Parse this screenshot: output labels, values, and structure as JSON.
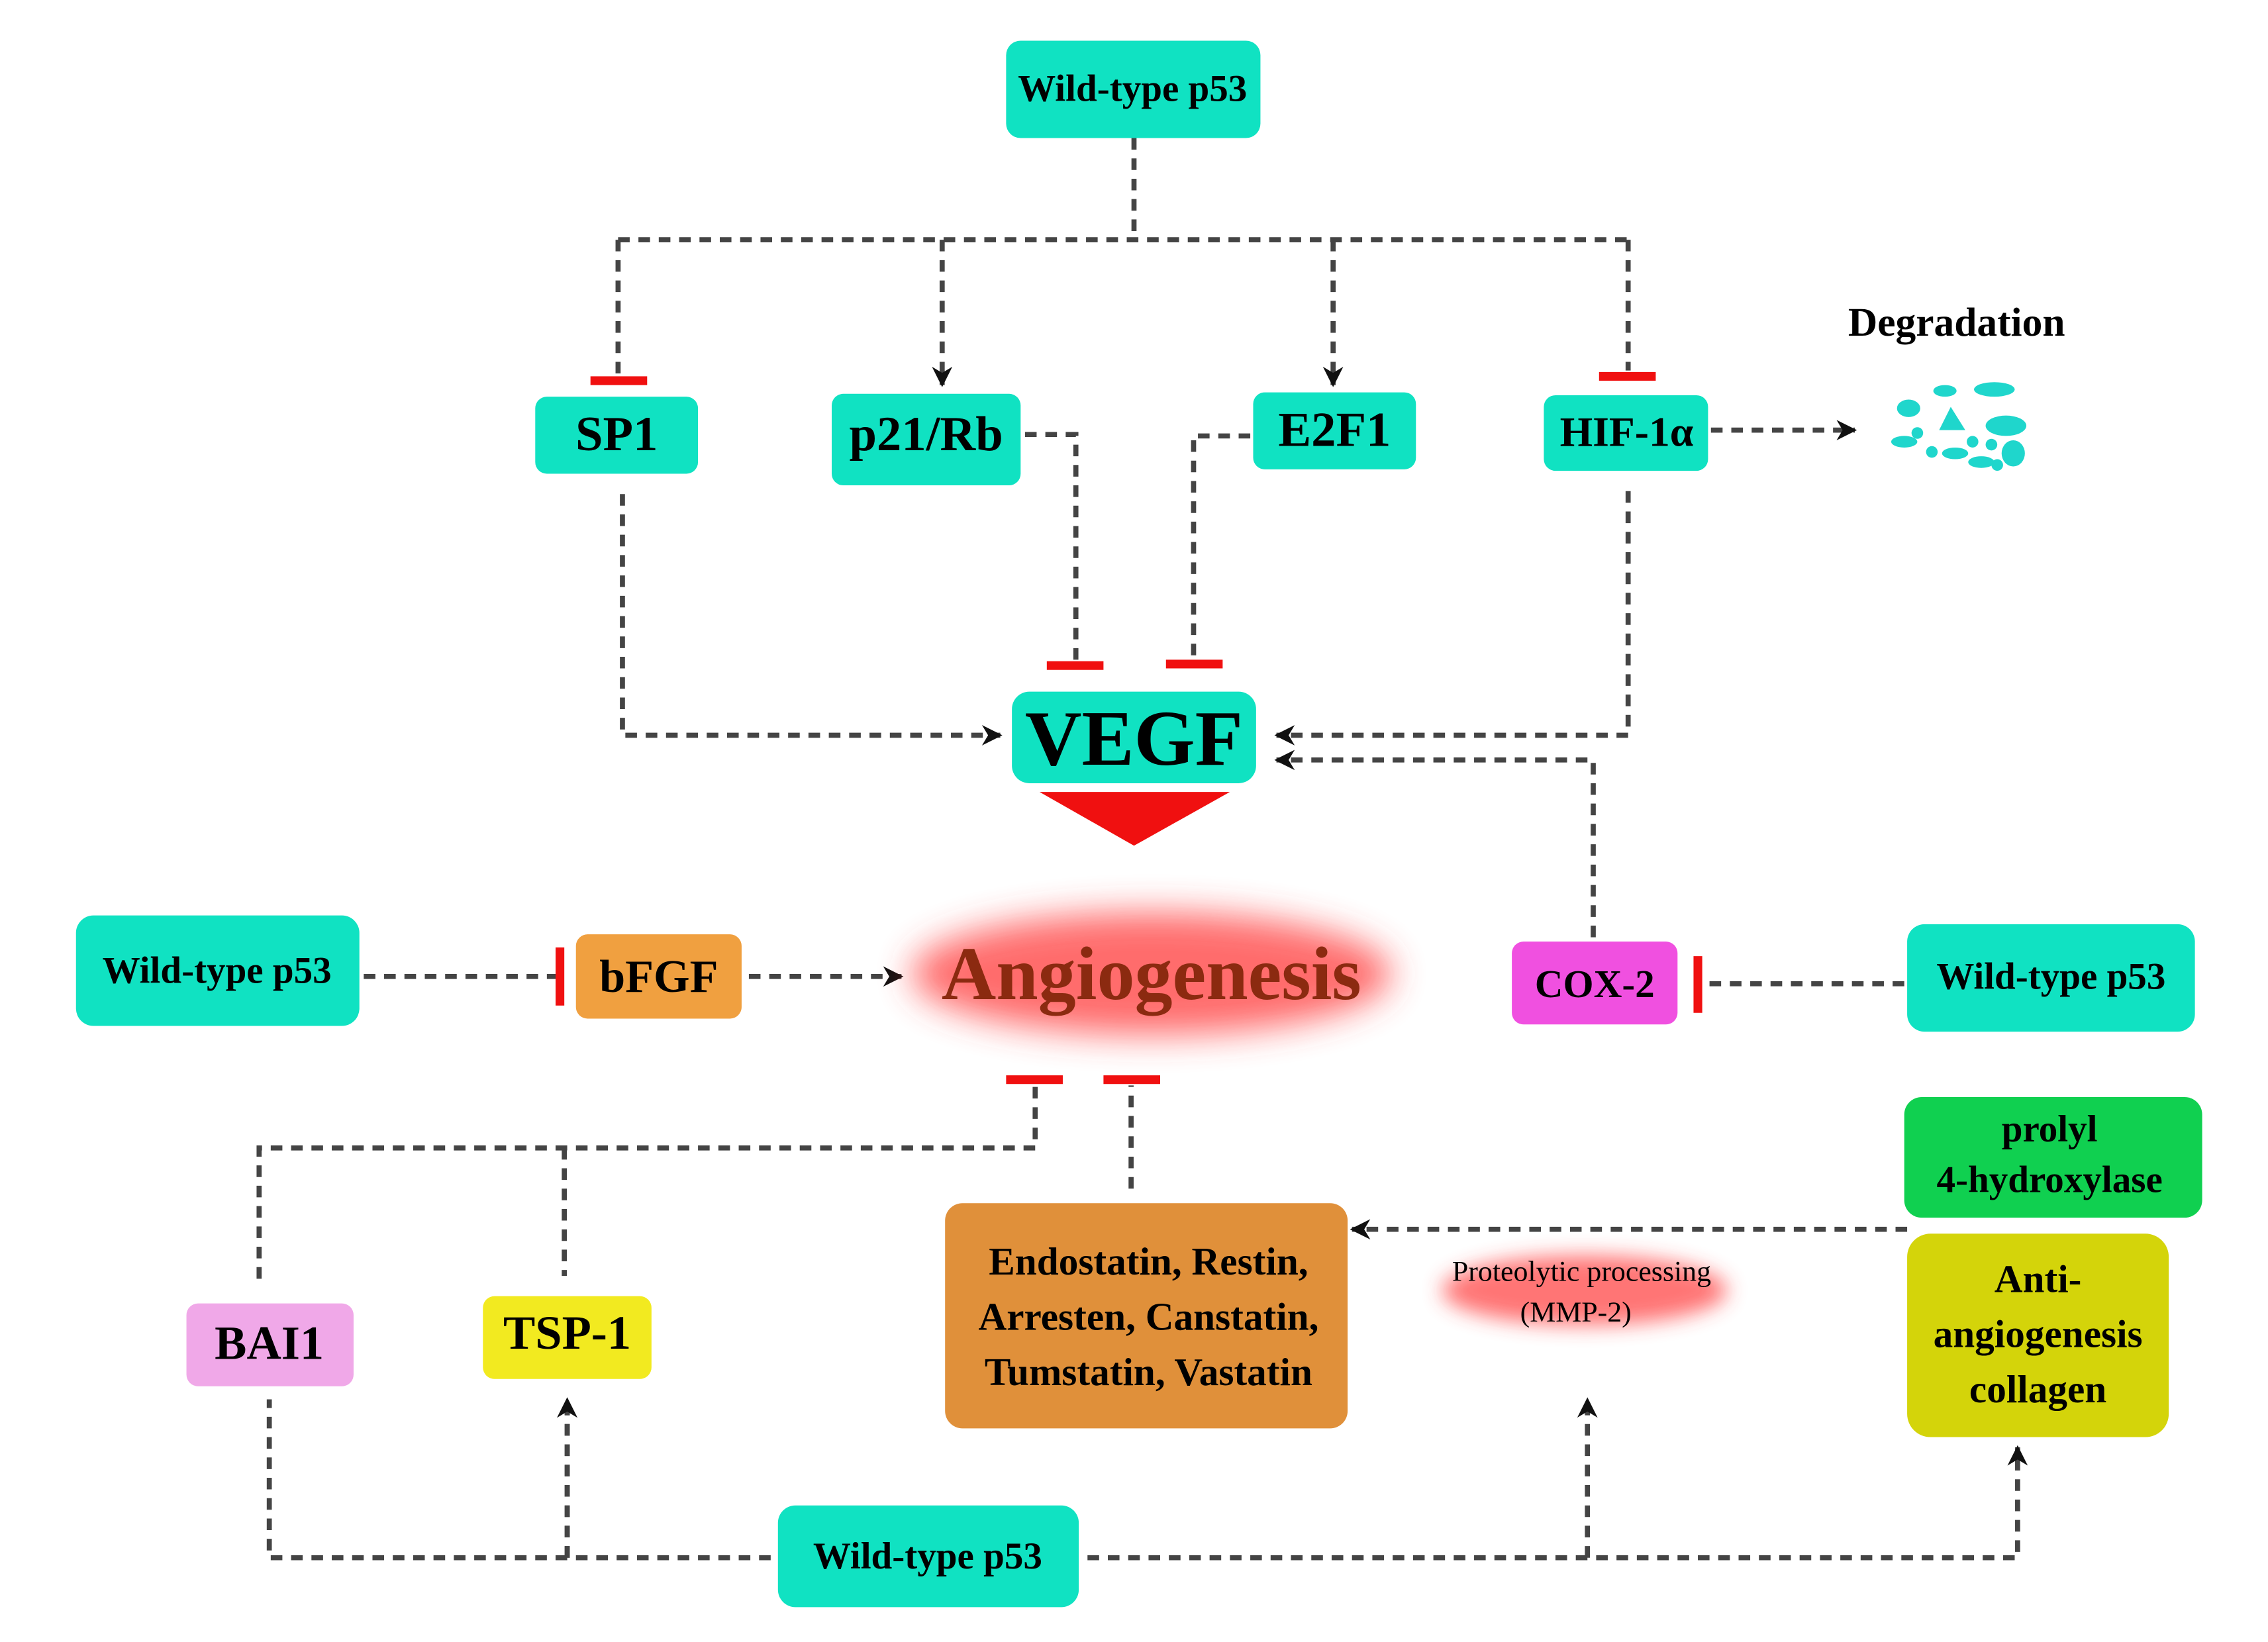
{
  "nodes": {
    "wt_top": "Wild-type p53",
    "sp1": "SP1",
    "p21rb": "p21/Rb",
    "e2f1": "E2F1",
    "hif": "HIF-1α",
    "degradation": "Degradation",
    "vegf": "VEGF",
    "angiogenesis": "Angiogenesis",
    "wt_left": "Wild-type p53",
    "bfgf": "bFGF",
    "cox2": "COX-2",
    "wt_right": "Wild-type p53",
    "prolyl": [
      "prolyl",
      "4-hydroxylase"
    ],
    "collagen": [
      "Anti-",
      "angiogenesis",
      "collagen"
    ],
    "endostatin": [
      "Endostatin, Restin,",
      "Arresten, Canstatin,",
      "Tumstatin, Vastatin"
    ],
    "proteolytic": [
      "Proteolytic processing",
      "(MMP-2)"
    ],
    "bai1": "BAI1",
    "tsp1": "TSP-1",
    "wt_bottom": "Wild-type p53"
  },
  "colors": {
    "p53_teal": "#10e2c2",
    "inhibit_red": "#f01010",
    "cox2": "#f050e0",
    "bai1": "#f0a8e8",
    "tsp1": "#f2ea20",
    "bfgf": "#f0a040",
    "endostatin": "#e0903a",
    "prolyl": "#10d050",
    "collagen": "#d4d40a",
    "angiogenesis_text": "#8b2a10"
  }
}
